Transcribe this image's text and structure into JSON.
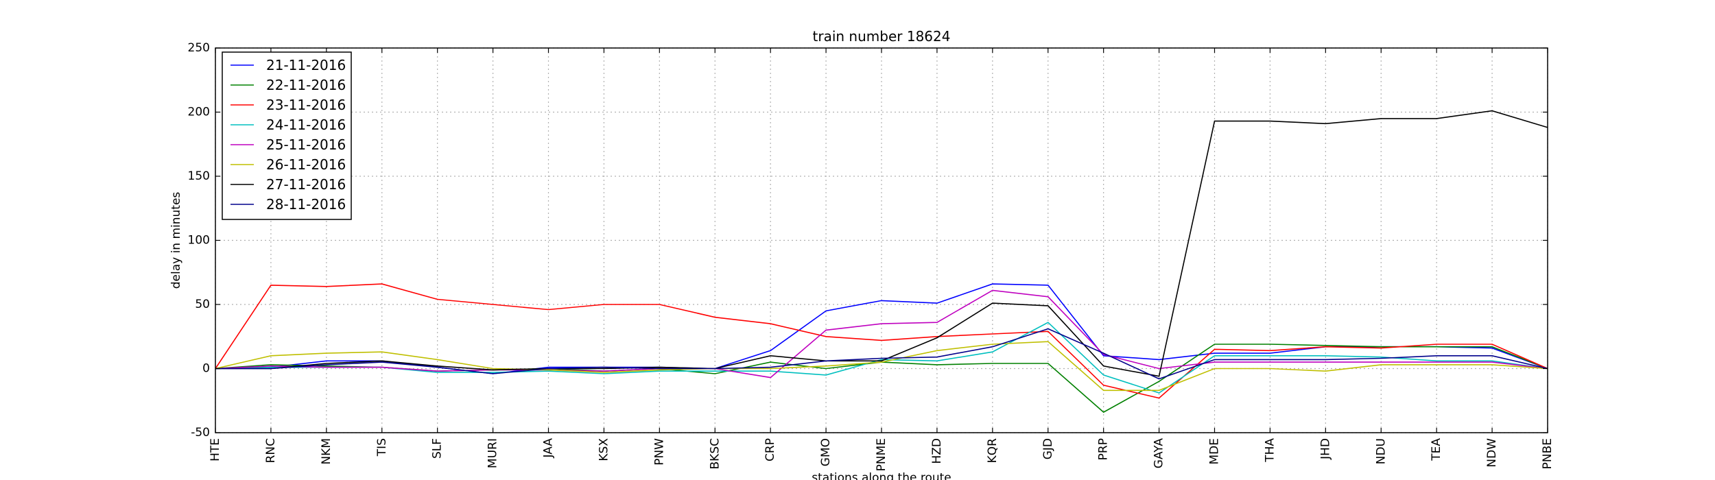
{
  "chart_data": {
    "type": "line",
    "title": "train number 18624",
    "xlabel": "stations along the route",
    "ylabel": "delay in minutes",
    "ylim": [
      -50,
      250
    ],
    "yticks": [
      -50,
      0,
      50,
      100,
      150,
      200,
      250
    ],
    "grid": true,
    "legend_position": "top-left",
    "categories": [
      "HTE",
      "RNC",
      "NKM",
      "TIS",
      "SLF",
      "MURI",
      "JAA",
      "KSX",
      "PNW",
      "BKSC",
      "CRP",
      "GMO",
      "PNME",
      "HZD",
      "KQR",
      "GJD",
      "PRP",
      "GAYA",
      "MDE",
      "THA",
      "JHD",
      "NDU",
      "TEA",
      "NDW",
      "PNBE"
    ],
    "series": [
      {
        "name": "21-11-2016",
        "color": "#0000ff",
        "values": [
          0,
          1,
          6,
          6,
          1,
          -4,
          1,
          1,
          1,
          0,
          14,
          45,
          53,
          51,
          66,
          65,
          10,
          7,
          12,
          12,
          17,
          17,
          17,
          16,
          0
        ]
      },
      {
        "name": "22-11-2016",
        "color": "#008000",
        "values": [
          0,
          3,
          2,
          1,
          -2,
          -1,
          0,
          -2,
          0,
          -4,
          5,
          0,
          5,
          3,
          4,
          4,
          -34,
          -10,
          19,
          19,
          18,
          17,
          17,
          17,
          0
        ]
      },
      {
        "name": "23-11-2016",
        "color": "#ff0000",
        "values": [
          0,
          65,
          64,
          66,
          54,
          50,
          46,
          50,
          50,
          40,
          35,
          25,
          22,
          25,
          27,
          29,
          -13,
          -23,
          15,
          14,
          17,
          16,
          19,
          19,
          0
        ]
      },
      {
        "name": "24-11-2016",
        "color": "#00bfbf",
        "values": [
          0,
          1,
          1,
          1,
          -3,
          -3,
          -2,
          -4,
          -2,
          -2,
          -2,
          -5,
          7,
          6,
          13,
          36,
          -5,
          -19,
          10,
          10,
          10,
          9,
          6,
          6,
          0
        ]
      },
      {
        "name": "25-11-2016",
        "color": "#bf00bf",
        "values": [
          0,
          2,
          1,
          1,
          -2,
          -1,
          -1,
          -2,
          0,
          0,
          -7,
          30,
          35,
          36,
          61,
          56,
          11,
          0,
          5,
          5,
          5,
          5,
          5,
          5,
          0
        ]
      },
      {
        "name": "26-11-2016",
        "color": "#bfbf00",
        "values": [
          0,
          10,
          12,
          13,
          7,
          0,
          -1,
          -3,
          -1,
          0,
          0,
          2,
          5,
          14,
          19,
          21,
          -17,
          -17,
          0,
          0,
          -2,
          3,
          3,
          3,
          0
        ]
      },
      {
        "name": "27-11-2016",
        "color": "#000000",
        "values": [
          0,
          0,
          4,
          6,
          2,
          -1,
          0,
          0,
          1,
          0,
          10,
          6,
          6,
          24,
          51,
          49,
          2,
          -6,
          193,
          193,
          191,
          195,
          195,
          201,
          188
        ]
      },
      {
        "name": "28-11-2016",
        "color": "#00008b",
        "values": [
          0,
          0,
          3,
          5,
          1,
          -4,
          0,
          1,
          0,
          0,
          1,
          6,
          8,
          9,
          17,
          31,
          12,
          -8,
          7,
          7,
          7,
          8,
          10,
          10,
          0
        ]
      }
    ]
  }
}
